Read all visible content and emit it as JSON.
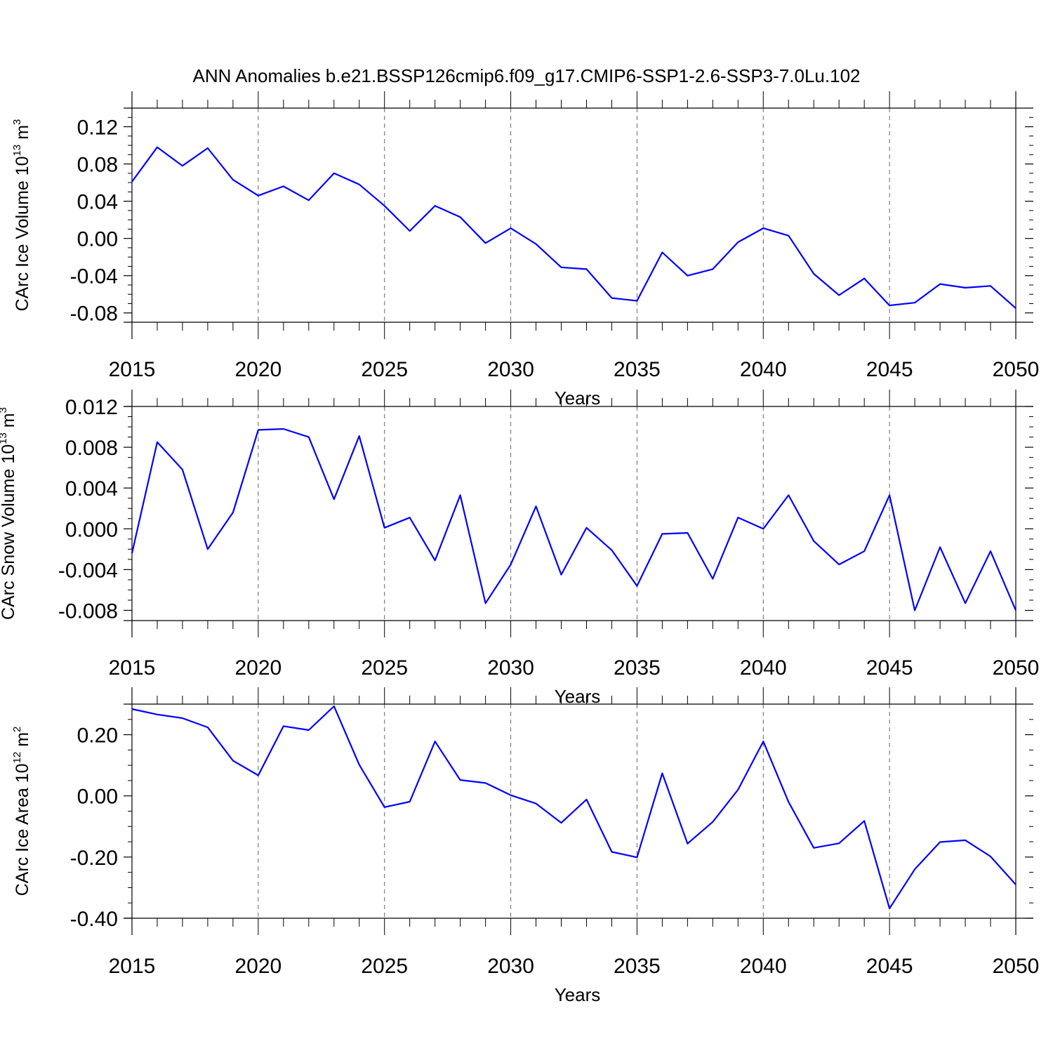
{
  "figure_title": "ANN Anomalies b.e21.BSSP126cmip6.f09_g17.CMIP6-SSP1-2.6-SSP3-7.0Lu.102",
  "line_color": "#0000ff",
  "axis_color": "#000000",
  "chart_data": [
    {
      "type": "line",
      "title": "ANN Anomalies b.e21.BSSP126cmip6.f09_g17.CMIP6-SSP1-2.6-SSP3-7.0Lu.102",
      "xlabel": "Years",
      "ylabel": {
        "base": "CArc Ice Volume 10",
        "exp1": "13",
        "mid": " m",
        "exp2": "3"
      },
      "xlim": [
        2015,
        2050
      ],
      "ylim": [
        -0.09,
        0.14
      ],
      "yticks": [
        0.12,
        0.08,
        0.04,
        0.0,
        -0.04,
        -0.08
      ],
      "ytick_labels": [
        "0.12",
        "0.08",
        "0.04",
        "0.00",
        "-0.04",
        "-0.08"
      ],
      "yminor_step": 0.01,
      "xticks": [
        2015,
        2020,
        2025,
        2030,
        2035,
        2040,
        2045,
        2050
      ],
      "xtick_labels": [
        "2015",
        "2020",
        "2025",
        "2030",
        "2035",
        "2040",
        "2045",
        "2050"
      ],
      "x": [
        2015,
        2016,
        2017,
        2018,
        2019,
        2020,
        2021,
        2022,
        2023,
        2024,
        2025,
        2026,
        2027,
        2028,
        2029,
        2030,
        2031,
        2032,
        2033,
        2034,
        2035,
        2036,
        2037,
        2038,
        2039,
        2040,
        2041,
        2042,
        2043,
        2044,
        2045,
        2046,
        2047,
        2048,
        2049,
        2050
      ],
      "values": [
        0.061,
        0.098,
        0.078,
        0.097,
        0.063,
        0.046,
        0.056,
        0.041,
        0.07,
        0.058,
        0.035,
        0.008,
        0.035,
        0.023,
        -0.005,
        0.011,
        -0.006,
        -0.031,
        -0.033,
        -0.064,
        -0.067,
        -0.015,
        -0.04,
        -0.033,
        -0.004,
        0.011,
        0.003,
        -0.038,
        -0.061,
        -0.043,
        -0.072,
        -0.069,
        -0.049,
        -0.053,
        -0.051,
        -0.075
      ]
    },
    {
      "type": "line",
      "xlabel": "Years",
      "ylabel": {
        "base": "CArc Snow Volume 10",
        "exp1": "13",
        "mid": " m",
        "exp2": "3"
      },
      "xlim": [
        2015,
        2050
      ],
      "ylim": [
        -0.009,
        0.012
      ],
      "yticks": [
        0.012,
        0.008,
        0.004,
        0.0,
        -0.004,
        -0.008
      ],
      "ytick_labels": [
        "0.012",
        "0.008",
        "0.004",
        "0.000",
        "-0.004",
        "-0.008"
      ],
      "yminor_step": 0.001,
      "xticks": [
        2015,
        2020,
        2025,
        2030,
        2035,
        2040,
        2045,
        2050
      ],
      "xtick_labels": [
        "2015",
        "2020",
        "2025",
        "2030",
        "2035",
        "2040",
        "2045",
        "2050"
      ],
      "x": [
        2015,
        2016,
        2017,
        2018,
        2019,
        2020,
        2021,
        2022,
        2023,
        2024,
        2025,
        2026,
        2027,
        2028,
        2029,
        2030,
        2031,
        2032,
        2033,
        2034,
        2035,
        2036,
        2037,
        2038,
        2039,
        2040,
        2041,
        2042,
        2043,
        2044,
        2045,
        2046,
        2047,
        2048,
        2049,
        2050
      ],
      "values": [
        -0.0024,
        0.0085,
        0.0058,
        -0.002,
        0.0016,
        0.0097,
        0.0098,
        0.009,
        0.0029,
        0.0091,
        0.0001,
        0.0011,
        -0.0031,
        0.0033,
        -0.0073,
        -0.0035,
        0.0022,
        -0.0045,
        0.0001,
        -0.0021,
        -0.0056,
        -0.0005,
        -0.0004,
        -0.0049,
        0.0011,
        0.0,
        0.0033,
        -0.0012,
        -0.0035,
        -0.0022,
        0.0033,
        -0.008,
        -0.0018,
        -0.0073,
        -0.0022,
        -0.008
      ]
    },
    {
      "type": "line",
      "xlabel": "Years",
      "ylabel": {
        "base": "CArc Ice Area 10",
        "exp1": "12",
        "mid": " m",
        "exp2": "2"
      },
      "xlim": [
        2015,
        2050
      ],
      "ylim": [
        -0.4,
        0.3
      ],
      "yticks": [
        0.2,
        0.0,
        -0.2,
        -0.4
      ],
      "ytick_labels": [
        "0.20",
        "0.00",
        "-0.20",
        "-0.40"
      ],
      "yminor_step": 0.05,
      "xticks": [
        2015,
        2020,
        2025,
        2030,
        2035,
        2040,
        2045,
        2050
      ],
      "xtick_labels": [
        "2015",
        "2020",
        "2025",
        "2030",
        "2035",
        "2040",
        "2045",
        "2050"
      ],
      "x": [
        2015,
        2016,
        2017,
        2018,
        2019,
        2020,
        2021,
        2022,
        2023,
        2024,
        2025,
        2026,
        2027,
        2028,
        2029,
        2030,
        2031,
        2032,
        2033,
        2034,
        2035,
        2036,
        2037,
        2038,
        2039,
        2040,
        2041,
        2042,
        2043,
        2044,
        2045,
        2046,
        2047,
        2048,
        2049,
        2050
      ],
      "values": [
        0.284,
        0.266,
        0.254,
        0.224,
        0.115,
        0.067,
        0.228,
        0.215,
        0.293,
        0.102,
        -0.037,
        -0.019,
        0.178,
        0.052,
        0.042,
        0.002,
        -0.025,
        -0.088,
        -0.012,
        -0.183,
        -0.201,
        0.074,
        -0.156,
        -0.085,
        0.02,
        0.178,
        -0.02,
        -0.17,
        -0.155,
        -0.082,
        -0.368,
        -0.24,
        -0.151,
        -0.145,
        -0.198,
        -0.29
      ]
    }
  ]
}
